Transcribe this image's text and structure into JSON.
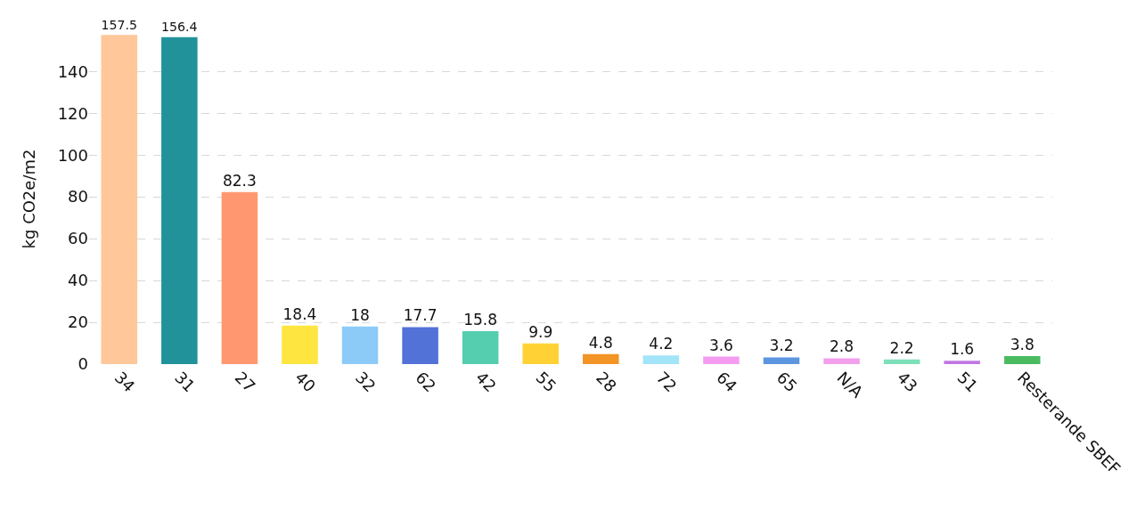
{
  "chart_data": {
    "type": "bar",
    "ylabel": "kg CO2e/m2",
    "categories": [
      "34",
      "31",
      "27",
      "40",
      "32",
      "62",
      "42",
      "55",
      "28",
      "72",
      "64",
      "65",
      "N/A",
      "43",
      "51",
      "Resterande SBEF"
    ],
    "values": [
      157.5,
      156.4,
      82.3,
      18.4,
      18,
      17.7,
      15.8,
      9.9,
      4.8,
      4.2,
      3.6,
      3.2,
      2.8,
      2.2,
      1.6,
      3.8
    ],
    "colors": [
      "#ffc79a",
      "#21929a",
      "#ff9870",
      "#ffe53f",
      "#8ccbf8",
      "#5272d8",
      "#55ceb0",
      "#ffd135",
      "#f39426",
      "#a3e4f8",
      "#f49cf0",
      "#5d96e0",
      "#f2a0ec",
      "#7de0b8",
      "#c276e2",
      "#4cbb60"
    ],
    "ylim": [
      0,
      158
    ],
    "yticks": [
      0,
      20,
      40,
      60,
      80,
      100,
      120,
      140
    ],
    "grid": "y",
    "data_labels": true
  }
}
